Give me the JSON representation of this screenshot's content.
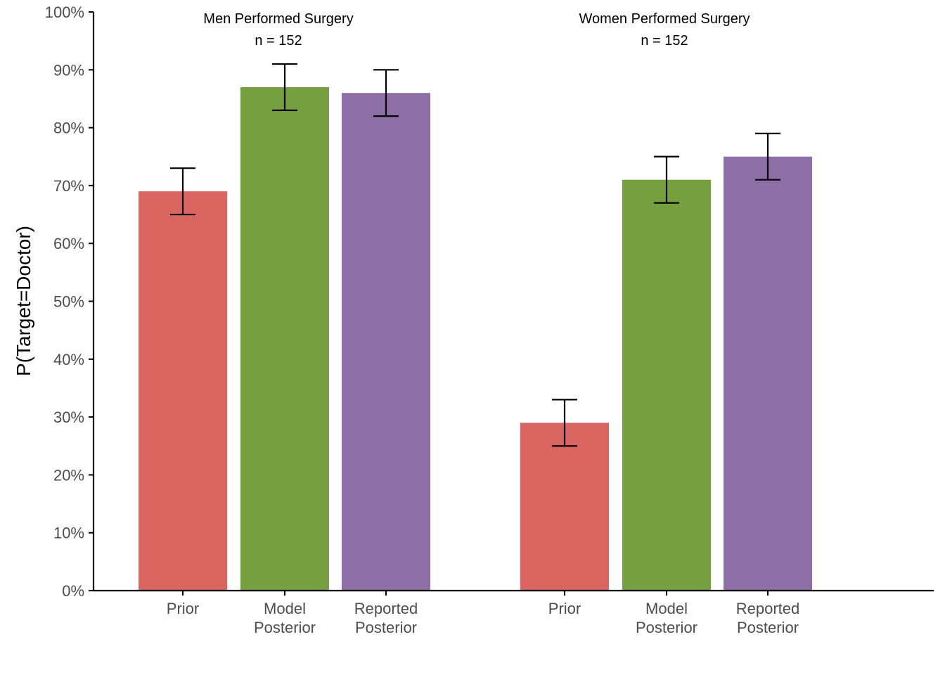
{
  "chart_data": {
    "type": "bar",
    "ylabel": "P(Target=Doctor)",
    "ylim": [
      0,
      100
    ],
    "yticks": [
      0,
      10,
      20,
      30,
      40,
      50,
      60,
      70,
      80,
      90,
      100
    ],
    "ytick_labels": [
      "0%",
      "10%",
      "20%",
      "30%",
      "40%",
      "50%",
      "60%",
      "70%",
      "80%",
      "90%",
      "100%"
    ],
    "grid": false,
    "legend": "none",
    "groups": [
      {
        "title": "Men Performed Surgery",
        "n_label": "n = 152",
        "bars": [
          {
            "category": [
              "Prior"
            ],
            "value": 69,
            "error_low": 65,
            "error_high": 73,
            "color": "#DA6460"
          },
          {
            "category": [
              "Model",
              "Posterior"
            ],
            "value": 87,
            "error_low": 83,
            "error_high": 91,
            "color": "#769F3F"
          },
          {
            "category": [
              "Reported",
              "Posterior"
            ],
            "value": 86,
            "error_low": 82,
            "error_high": 90,
            "color": "#8D6EA6"
          }
        ]
      },
      {
        "title": "Women Performed Surgery",
        "n_label": "n = 152",
        "bars": [
          {
            "category": [
              "Prior"
            ],
            "value": 29,
            "error_low": 25,
            "error_high": 33,
            "color": "#DA6460"
          },
          {
            "category": [
              "Model",
              "Posterior"
            ],
            "value": 71,
            "error_low": 67,
            "error_high": 75,
            "color": "#769F3F"
          },
          {
            "category": [
              "Reported",
              "Posterior"
            ],
            "value": 75,
            "error_low": 71,
            "error_high": 79,
            "color": "#8D6EA6"
          }
        ]
      }
    ]
  }
}
